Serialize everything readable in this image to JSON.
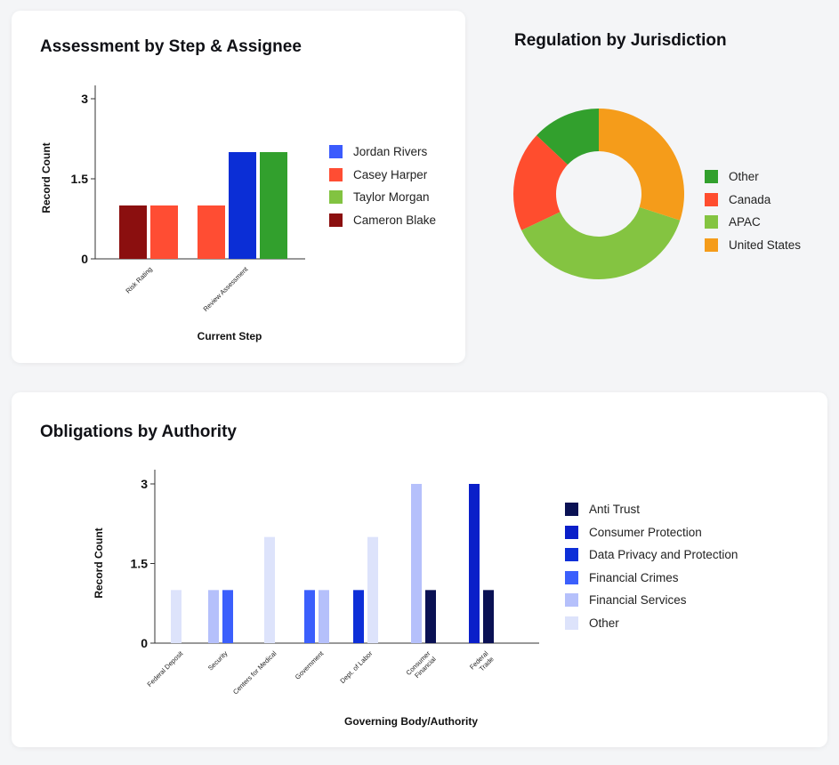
{
  "chart_data": [
    {
      "type": "bar",
      "title": "Assessment by Step & Assignee",
      "xlabel": "Current Step",
      "ylabel": "Record Count",
      "yticks": [
        "0",
        "1.5",
        "3"
      ],
      "ylim": [
        0,
        3
      ],
      "categories": [
        "Risk Rating",
        "Review Assessment"
      ],
      "series": [
        {
          "name": "Jordan Rivers",
          "color": "#3b5bfd",
          "bar_color": "#0b2ed6",
          "values": [
            null,
            2
          ]
        },
        {
          "name": "Casey Harper",
          "color": "#ff4d33",
          "bar_color": "#ff4d33",
          "values": [
            1,
            1
          ]
        },
        {
          "name": "Taylor Morgan",
          "color": "#82c341",
          "bar_color": "#32a02d",
          "values": [
            null,
            2
          ]
        },
        {
          "name": "Cameron Blake",
          "color": "#8b0f0f",
          "bar_color": "#8b0f0f",
          "values": [
            1,
            null
          ]
        }
      ],
      "legend_position": "right"
    },
    {
      "type": "pie",
      "title": "Regulation by Jurisdiction",
      "donut": true,
      "slices": [
        {
          "name": "Other",
          "value": 13,
          "color": "#32a02d"
        },
        {
          "name": "Canada",
          "value": 19,
          "color": "#ff4d2e"
        },
        {
          "name": "APAC",
          "value": 38,
          "color": "#84c441"
        },
        {
          "name": "United States",
          "value": 30,
          "color": "#f59c1a"
        }
      ],
      "legend_position": "right"
    },
    {
      "type": "bar",
      "title": "Obligations by Authority",
      "xlabel": "Governing Body/Authority",
      "ylabel": "Record Count",
      "yticks": [
        "0",
        "1.5",
        "3"
      ],
      "ylim": [
        0,
        3
      ],
      "categories": [
        "Federal Deposit",
        "Security",
        "Centers for Medical",
        "Government",
        "Dept. of Labor",
        "Consumer Financial",
        "Federal Trade"
      ],
      "bars": [
        {
          "category": "Federal Deposit",
          "series": "Other",
          "value": 1
        },
        {
          "category": "Security",
          "series": "Financial Services",
          "value": 1
        },
        {
          "category": "Security",
          "series": "Financial Crimes",
          "value": 1
        },
        {
          "category": "Centers for Medical",
          "series": "Other",
          "value": 2
        },
        {
          "category": "Government",
          "series": "Financial Crimes",
          "value": 1
        },
        {
          "category": "Government",
          "series": "Financial Services",
          "value": 1
        },
        {
          "category": "Dept. of Labor",
          "series": "Data Privacy and Protection",
          "value": 1
        },
        {
          "category": "Dept. of Labor",
          "series": "Other",
          "value": 2
        },
        {
          "category": "Consumer Financial",
          "series": "Financial Services",
          "value": 3
        },
        {
          "category": "Consumer Financial",
          "series": "Anti Trust",
          "value": 1
        },
        {
          "category": "Federal Trade",
          "series": "Consumer Protection",
          "value": 3
        },
        {
          "category": "Federal Trade",
          "series": "Anti Trust",
          "value": 1
        }
      ],
      "series": [
        {
          "name": "Anti Trust",
          "color": "#0a1154"
        },
        {
          "name": "Consumer Protection",
          "color": "#0a1fc9"
        },
        {
          "name": "Data Privacy and Protection",
          "color": "#0d2fd8"
        },
        {
          "name": "Financial Crimes",
          "color": "#3b5ffc"
        },
        {
          "name": "Financial Services",
          "color": "#b5c0fb"
        },
        {
          "name": "Other",
          "color": "#dde3fb"
        }
      ],
      "legend_position": "right"
    }
  ]
}
